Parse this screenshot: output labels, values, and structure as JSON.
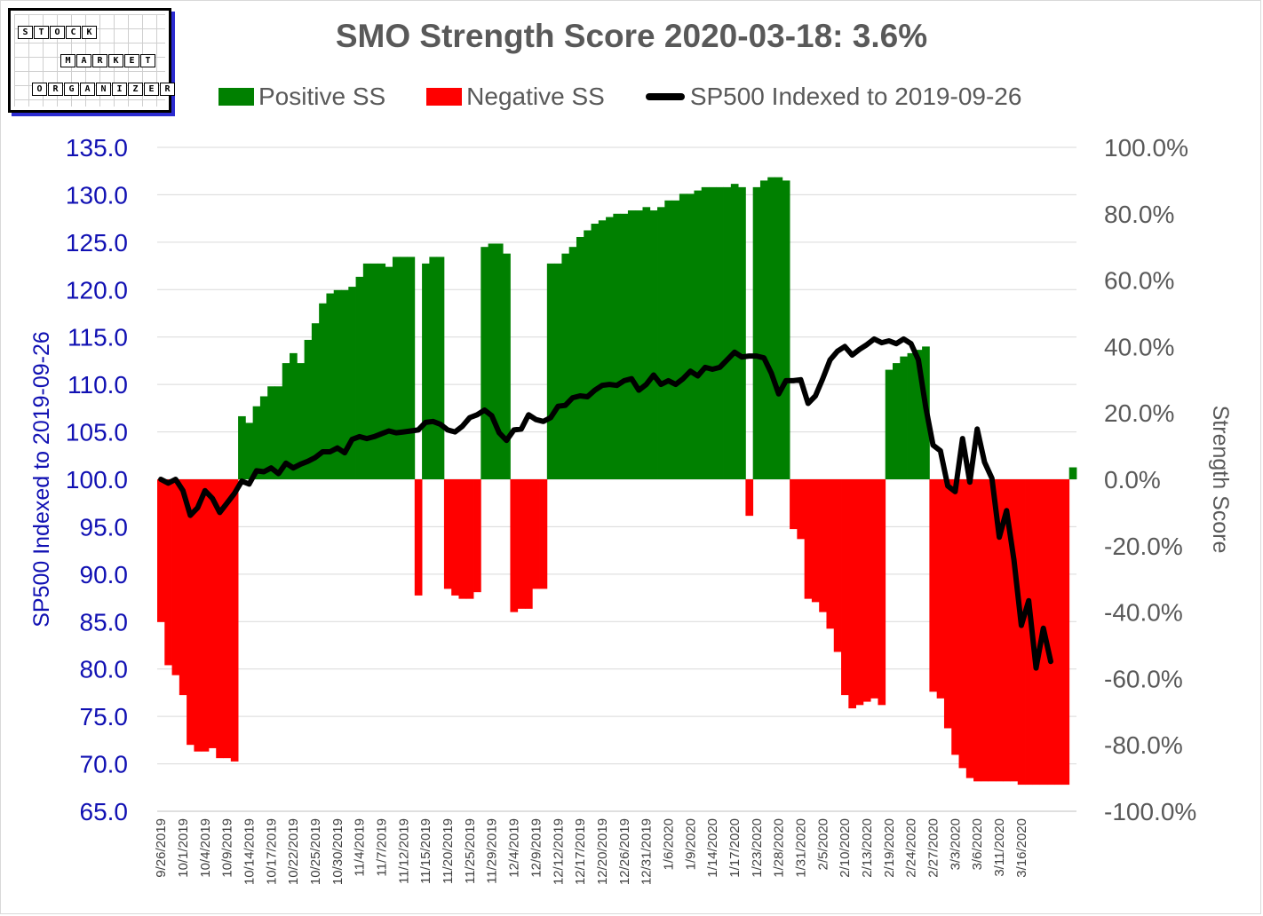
{
  "logo": {
    "row1": [
      "S",
      "T",
      "O",
      "C",
      "K"
    ],
    "row2": [
      "M",
      "A",
      "R",
      "K",
      "E",
      "T"
    ],
    "row3": [
      "O",
      "R",
      "G",
      "A",
      "N",
      "I",
      "Z",
      "E",
      "R"
    ]
  },
  "colors": {
    "positive": "#008000",
    "negative": "#ff0000",
    "line": "#000000",
    "left_axis": "#1111b3",
    "right_axis": "#595959",
    "grid": "#d9d9d9"
  },
  "chart_data": {
    "type": "bar+line",
    "title": "SMO Strength Score 2020-03-18: 3.6%",
    "legend": [
      "Positive SS",
      "Negative SS",
      "SP500 Indexed to 2019-09-26"
    ],
    "ylabel_left": "SP500 Indexed to 2019-09-26",
    "ylabel_right": "Strength Score",
    "ylim_left": [
      65,
      135
    ],
    "ylim_right": [
      -100,
      100
    ],
    "yticks_left": [
      "135.0",
      "130.0",
      "125.0",
      "120.0",
      "115.0",
      "110.0",
      "105.0",
      "100.0",
      "95.0",
      "90.0",
      "85.0",
      "80.0",
      "75.0",
      "70.0",
      "65.0"
    ],
    "yticks_right": [
      "100.0%",
      "80.0%",
      "60.0%",
      "40.0%",
      "20.0%",
      "0.0%",
      "-20.0%",
      "-40.0%",
      "-60.0%",
      "-80.0%",
      "-100.0%"
    ],
    "xticks": [
      {
        "i": 0,
        "label": "9/26/2019"
      },
      {
        "i": 3,
        "label": "10/1/2019"
      },
      {
        "i": 6,
        "label": "10/4/2019"
      },
      {
        "i": 9,
        "label": "10/9/2019"
      },
      {
        "i": 12,
        "label": "10/14/2019"
      },
      {
        "i": 15,
        "label": "10/17/2019"
      },
      {
        "i": 18,
        "label": "10/22/2019"
      },
      {
        "i": 21,
        "label": "10/25/2019"
      },
      {
        "i": 24,
        "label": "10/30/2019"
      },
      {
        "i": 27,
        "label": "11/4/2019"
      },
      {
        "i": 30,
        "label": "11/7/2019"
      },
      {
        "i": 33,
        "label": "11/12/2019"
      },
      {
        "i": 36,
        "label": "11/15/2019"
      },
      {
        "i": 39,
        "label": "11/20/2019"
      },
      {
        "i": 42,
        "label": "11/25/2019"
      },
      {
        "i": 45,
        "label": "11/29/2019"
      },
      {
        "i": 48,
        "label": "12/4/2019"
      },
      {
        "i": 51,
        "label": "12/9/2019"
      },
      {
        "i": 54,
        "label": "12/12/2019"
      },
      {
        "i": 57,
        "label": "12/17/2019"
      },
      {
        "i": 60,
        "label": "12/20/2019"
      },
      {
        "i": 63,
        "label": "12/26/2019"
      },
      {
        "i": 66,
        "label": "12/31/2019"
      },
      {
        "i": 69,
        "label": "1/6/2020"
      },
      {
        "i": 72,
        "label": "1/9/2020"
      },
      {
        "i": 75,
        "label": "1/14/2020"
      },
      {
        "i": 78,
        "label": "1/17/2020"
      },
      {
        "i": 81,
        "label": "1/23/2020"
      },
      {
        "i": 84,
        "label": "1/28/2020"
      },
      {
        "i": 87,
        "label": "1/31/2020"
      },
      {
        "i": 90,
        "label": "2/5/2020"
      },
      {
        "i": 93,
        "label": "2/10/2020"
      },
      {
        "i": 96,
        "label": "2/13/2020"
      },
      {
        "i": 99,
        "label": "2/19/2020"
      },
      {
        "i": 102,
        "label": "2/24/2020"
      },
      {
        "i": 105,
        "label": "2/27/2020"
      },
      {
        "i": 108,
        "label": "3/3/2020"
      },
      {
        "i": 111,
        "label": "3/6/2020"
      },
      {
        "i": 114,
        "label": "3/11/2020"
      },
      {
        "i": 117,
        "label": "3/16/2020"
      }
    ],
    "strength_score": [
      -43,
      -56,
      -59,
      -65,
      -80,
      -82,
      -82,
      -81,
      -84,
      -84,
      -85,
      19,
      17,
      22,
      25,
      28,
      28,
      35,
      38,
      35,
      42,
      47,
      53,
      56,
      57,
      57,
      58,
      61,
      65,
      65,
      65,
      64,
      67,
      67,
      67,
      -35,
      65,
      67,
      67,
      -33,
      -35,
      -36,
      -36,
      -34,
      70,
      71,
      71,
      68,
      -40,
      -39,
      -39,
      -33,
      -33,
      65,
      65,
      68,
      70,
      73,
      75,
      77,
      78,
      79,
      80,
      80,
      81,
      81,
      82,
      81,
      82,
      84,
      84,
      86,
      86,
      87,
      88,
      88,
      88,
      88,
      89,
      88,
      -11,
      88,
      90,
      91,
      91,
      90,
      -15,
      -18,
      -36,
      -37,
      -40,
      -45,
      -52,
      -65,
      -69,
      -68,
      -67,
      -66,
      -68,
      33,
      35,
      37,
      38,
      39,
      40,
      -64,
      -66,
      -75,
      -83,
      -87,
      -90,
      -91,
      -91,
      -91,
      -91,
      -91,
      -91,
      -92,
      -92,
      -92,
      -92,
      -92,
      -92,
      -92,
      3.6
    ],
    "sp500": [
      100.0,
      99.6,
      100.0,
      98.8,
      96.2,
      97.0,
      98.8,
      98.0,
      96.5,
      97.5,
      98.5,
      99.8,
      99.5,
      100.9,
      100.8,
      101.2,
      100.6,
      101.7,
      101.2,
      101.6,
      101.9,
      102.3,
      102.9,
      102.9,
      103.3,
      102.8,
      104.2,
      104.5,
      104.3,
      104.5,
      104.8,
      105.1,
      104.9,
      105.0,
      105.1,
      105.2,
      106.0,
      106.1,
      105.8,
      105.2,
      105.0,
      105.6,
      106.5,
      106.8,
      107.3,
      106.7,
      104.9,
      104.1,
      105.2,
      105.3,
      106.8,
      106.3,
      106.1,
      106.5,
      107.7,
      107.8,
      108.6,
      108.8,
      108.7,
      109.4,
      109.9,
      110.0,
      109.9,
      110.4,
      110.6,
      109.4,
      110.0,
      111.0,
      110.0,
      110.4,
      110.0,
      110.6,
      111.4,
      110.9,
      111.8,
      111.6,
      111.8,
      112.6,
      113.4,
      112.9,
      113.0,
      113.0,
      112.8,
      111.2,
      109.0,
      110.4,
      110.4,
      110.5,
      108.0,
      108.8,
      110.6,
      112.6,
      113.5,
      114.0,
      113.1,
      113.7,
      114.2,
      114.8,
      114.4,
      114.6,
      114.3,
      114.8,
      114.3,
      112.6,
      107.6,
      103.6,
      103.0,
      99.3,
      98.7,
      104.3,
      99.7,
      105.3,
      101.8,
      100.1,
      93.9,
      96.7,
      91.5,
      84.6,
      87.2,
      80.1,
      84.3,
      80.8
    ]
  }
}
